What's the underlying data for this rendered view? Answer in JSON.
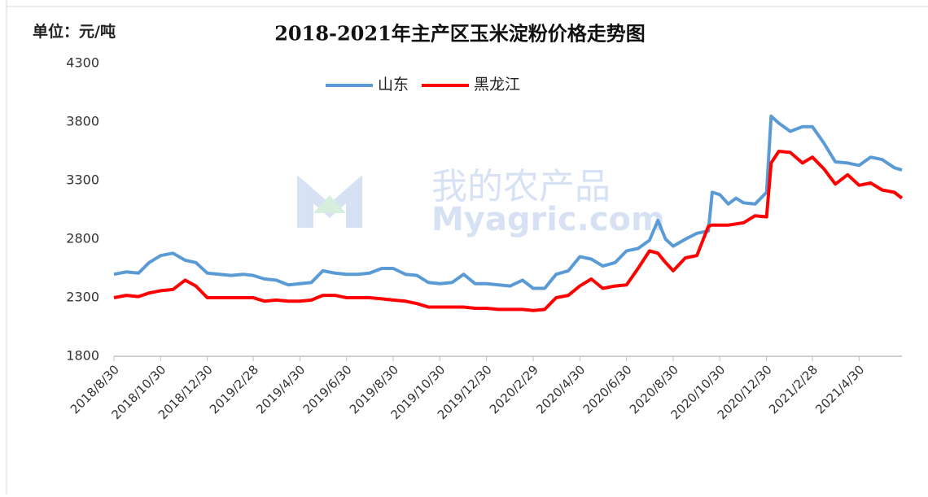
{
  "chart_data": {
    "type": "line",
    "title": "2018-2021年主产区玉米淀粉价格走势图",
    "y_unit_label": "单位：元/吨",
    "watermark": [
      "我的农产品",
      "Myagric.com"
    ],
    "x": [
      "2018/8/30",
      "2018/9/15",
      "2018/10/1",
      "2018/10/15",
      "2018/10/30",
      "2018/11/15",
      "2018/12/1",
      "2018/12/15",
      "2018/12/30",
      "2019/1/15",
      "2019/1/30",
      "2019/2/15",
      "2019/2/28",
      "2019/3/15",
      "2019/3/30",
      "2019/4/15",
      "2019/4/30",
      "2019/5/15",
      "2019/5/30",
      "2019/6/15",
      "2019/6/30",
      "2019/7/15",
      "2019/7/30",
      "2019/8/15",
      "2019/8/30",
      "2019/9/15",
      "2019/9/30",
      "2019/10/15",
      "2019/10/30",
      "2019/11/15",
      "2019/11/30",
      "2019/12/15",
      "2019/12/30",
      "2020/1/15",
      "2020/1/30",
      "2020/2/15",
      "2020/2/29",
      "2020/3/15",
      "2020/3/30",
      "2020/4/15",
      "2020/4/30",
      "2020/5/15",
      "2020/5/30",
      "2020/6/15",
      "2020/6/30",
      "2020/7/15",
      "2020/7/30",
      "2020/8/10",
      "2020/8/20",
      "2020/8/30",
      "2020/9/15",
      "2020/9/30",
      "2020/10/15",
      "2020/10/20",
      "2020/10/30",
      "2020/11/10",
      "2020/11/20",
      "2020/11/30",
      "2020/12/15",
      "2020/12/30",
      "2021/1/5",
      "2021/1/15",
      "2021/1/30",
      "2021/2/15",
      "2021/2/28",
      "2021/3/15",
      "2021/3/30",
      "2021/4/15",
      "2021/4/30",
      "2021/5/15",
      "2021/5/30",
      "2021/6/15",
      "2021/6/25"
    ],
    "series": [
      {
        "name": "山东",
        "color": "#5b9bd5",
        "values": [
          2500,
          2520,
          2510,
          2600,
          2660,
          2680,
          2620,
          2600,
          2510,
          2500,
          2490,
          2500,
          2490,
          2460,
          2450,
          2410,
          2420,
          2430,
          2530,
          2510,
          2500,
          2500,
          2510,
          2550,
          2550,
          2500,
          2490,
          2430,
          2420,
          2430,
          2500,
          2420,
          2420,
          2410,
          2400,
          2450,
          2380,
          2380,
          2500,
          2530,
          2650,
          2630,
          2570,
          2600,
          2700,
          2720,
          2790,
          2960,
          2800,
          2740,
          2800,
          2850,
          2870,
          3200,
          3180,
          3100,
          3150,
          3110,
          3100,
          3200,
          3850,
          3790,
          3720,
          3760,
          3760,
          3620,
          3460,
          3450,
          3430,
          3500,
          3480,
          3410,
          3390
        ]
      },
      {
        "name": "黑龙江",
        "color": "#ff0000",
        "values": [
          2300,
          2320,
          2310,
          2340,
          2360,
          2370,
          2450,
          2400,
          2300,
          2300,
          2300,
          2300,
          2300,
          2270,
          2280,
          2270,
          2270,
          2280,
          2320,
          2320,
          2300,
          2300,
          2300,
          2290,
          2280,
          2270,
          2250,
          2220,
          2220,
          2220,
          2220,
          2210,
          2210,
          2200,
          2200,
          2200,
          2190,
          2200,
          2300,
          2320,
          2400,
          2460,
          2380,
          2400,
          2410,
          2550,
          2700,
          2680,
          2600,
          2530,
          2640,
          2660,
          2910,
          2920,
          2920,
          2920,
          2930,
          2940,
          3000,
          2990,
          3450,
          3550,
          3540,
          3450,
          3500,
          3400,
          3270,
          3350,
          3260,
          3280,
          3220,
          3200,
          3150
        ]
      }
    ],
    "xlim": [
      "2018/8/30",
      "2021/6/25"
    ],
    "xticks": [
      "2018/8/30",
      "2018/10/30",
      "2018/12/30",
      "2019/2/28",
      "2019/4/30",
      "2019/6/30",
      "2019/8/30",
      "2019/10/30",
      "2019/12/30",
      "2020/2/29",
      "2020/4/30",
      "2020/6/30",
      "2020/8/30",
      "2020/10/30",
      "2020/12/30",
      "2021/2/28",
      "2021/4/30"
    ],
    "ylim": [
      1800,
      4300
    ],
    "yticks": [
      1800,
      2300,
      2800,
      3300,
      3800,
      4300
    ],
    "grid": false,
    "legend": "top"
  }
}
